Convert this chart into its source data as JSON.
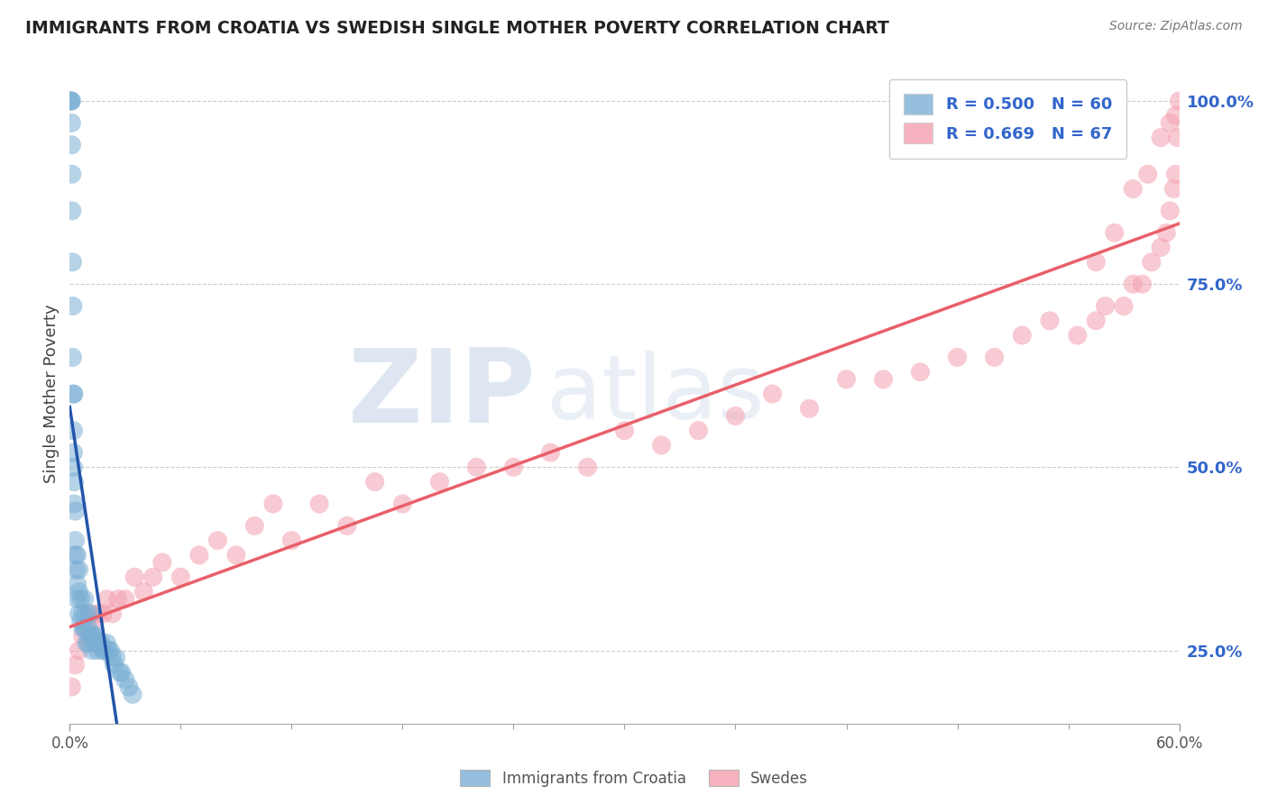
{
  "title": "IMMIGRANTS FROM CROATIA VS SWEDISH SINGLE MOTHER POVERTY CORRELATION CHART",
  "source": "Source: ZipAtlas.com",
  "ylabel": "Single Mother Poverty",
  "legend_r_blue": "R = 0.500",
  "legend_n_blue": "N = 60",
  "legend_r_pink": "R = 0.669",
  "legend_n_pink": "N = 67",
  "legend_label_blue": "Immigrants from Croatia",
  "legend_label_pink": "Swedes",
  "blue_color": "#7BAFD4",
  "pink_color": "#F4A0B0",
  "blue_line_color": "#2255AA",
  "pink_line_color": "#E8606A",
  "background_color": "#FFFFFF",
  "grid_color": "#CCCCCC",
  "blue_x": [
    0.0005,
    0.0007,
    0.001,
    0.001,
    0.001,
    0.0012,
    0.0012,
    0.0015,
    0.0015,
    0.0017,
    0.002,
    0.002,
    0.002,
    0.002,
    0.0022,
    0.0025,
    0.0025,
    0.003,
    0.003,
    0.003,
    0.0035,
    0.004,
    0.004,
    0.004,
    0.005,
    0.005,
    0.005,
    0.006,
    0.006,
    0.007,
    0.007,
    0.008,
    0.008,
    0.009,
    0.009,
    0.01,
    0.01,
    0.011,
    0.011,
    0.012,
    0.012,
    0.013,
    0.014,
    0.014,
    0.015,
    0.016,
    0.017,
    0.018,
    0.019,
    0.02,
    0.021,
    0.022,
    0.023,
    0.024,
    0.025,
    0.027,
    0.028,
    0.03,
    0.032,
    0.034
  ],
  "blue_y": [
    1.0,
    1.0,
    1.0,
    0.97,
    0.94,
    0.9,
    0.85,
    0.78,
    0.65,
    0.72,
    0.6,
    0.55,
    0.52,
    0.5,
    0.6,
    0.48,
    0.45,
    0.44,
    0.4,
    0.38,
    0.36,
    0.34,
    0.38,
    0.32,
    0.36,
    0.33,
    0.3,
    0.32,
    0.29,
    0.3,
    0.28,
    0.32,
    0.28,
    0.3,
    0.26,
    0.28,
    0.26,
    0.3,
    0.27,
    0.27,
    0.25,
    0.27,
    0.26,
    0.27,
    0.25,
    0.26,
    0.26,
    0.25,
    0.25,
    0.26,
    0.25,
    0.25,
    0.24,
    0.23,
    0.24,
    0.22,
    0.22,
    0.21,
    0.2,
    0.19
  ],
  "pink_x": [
    0.001,
    0.003,
    0.005,
    0.007,
    0.009,
    0.011,
    0.013,
    0.015,
    0.018,
    0.02,
    0.023,
    0.026,
    0.03,
    0.035,
    0.04,
    0.045,
    0.05,
    0.06,
    0.07,
    0.08,
    0.09,
    0.1,
    0.11,
    0.12,
    0.135,
    0.15,
    0.165,
    0.18,
    0.2,
    0.22,
    0.24,
    0.26,
    0.28,
    0.3,
    0.32,
    0.34,
    0.36,
    0.38,
    0.4,
    0.42,
    0.44,
    0.46,
    0.48,
    0.5,
    0.515,
    0.53,
    0.545,
    0.555,
    0.56,
    0.57,
    0.575,
    0.58,
    0.585,
    0.59,
    0.593,
    0.595,
    0.597,
    0.598,
    0.599,
    0.6,
    0.598,
    0.595,
    0.59,
    0.583,
    0.575,
    0.565,
    0.555
  ],
  "pink_y": [
    0.2,
    0.23,
    0.25,
    0.27,
    0.28,
    0.3,
    0.29,
    0.3,
    0.3,
    0.32,
    0.3,
    0.32,
    0.32,
    0.35,
    0.33,
    0.35,
    0.37,
    0.35,
    0.38,
    0.4,
    0.38,
    0.42,
    0.45,
    0.4,
    0.45,
    0.42,
    0.48,
    0.45,
    0.48,
    0.5,
    0.5,
    0.52,
    0.5,
    0.55,
    0.53,
    0.55,
    0.57,
    0.6,
    0.58,
    0.62,
    0.62,
    0.63,
    0.65,
    0.65,
    0.68,
    0.7,
    0.68,
    0.7,
    0.72,
    0.72,
    0.75,
    0.75,
    0.78,
    0.8,
    0.82,
    0.85,
    0.88,
    0.9,
    0.95,
    1.0,
    0.98,
    0.97,
    0.95,
    0.9,
    0.88,
    0.82,
    0.78
  ],
  "xlim": [
    0.0,
    0.6
  ],
  "ylim": [
    0.15,
    1.05
  ],
  "ytick_positions": [
    0.25,
    0.5,
    0.75,
    1.0
  ],
  "ytick_label_strs": [
    "25.0%",
    "50.0%",
    "75.0%",
    "100.0%"
  ],
  "blue_regression_x0": 0.0,
  "blue_regression_x1": 0.034,
  "pink_regression_x0": 0.0,
  "pink_regression_x1": 0.6
}
